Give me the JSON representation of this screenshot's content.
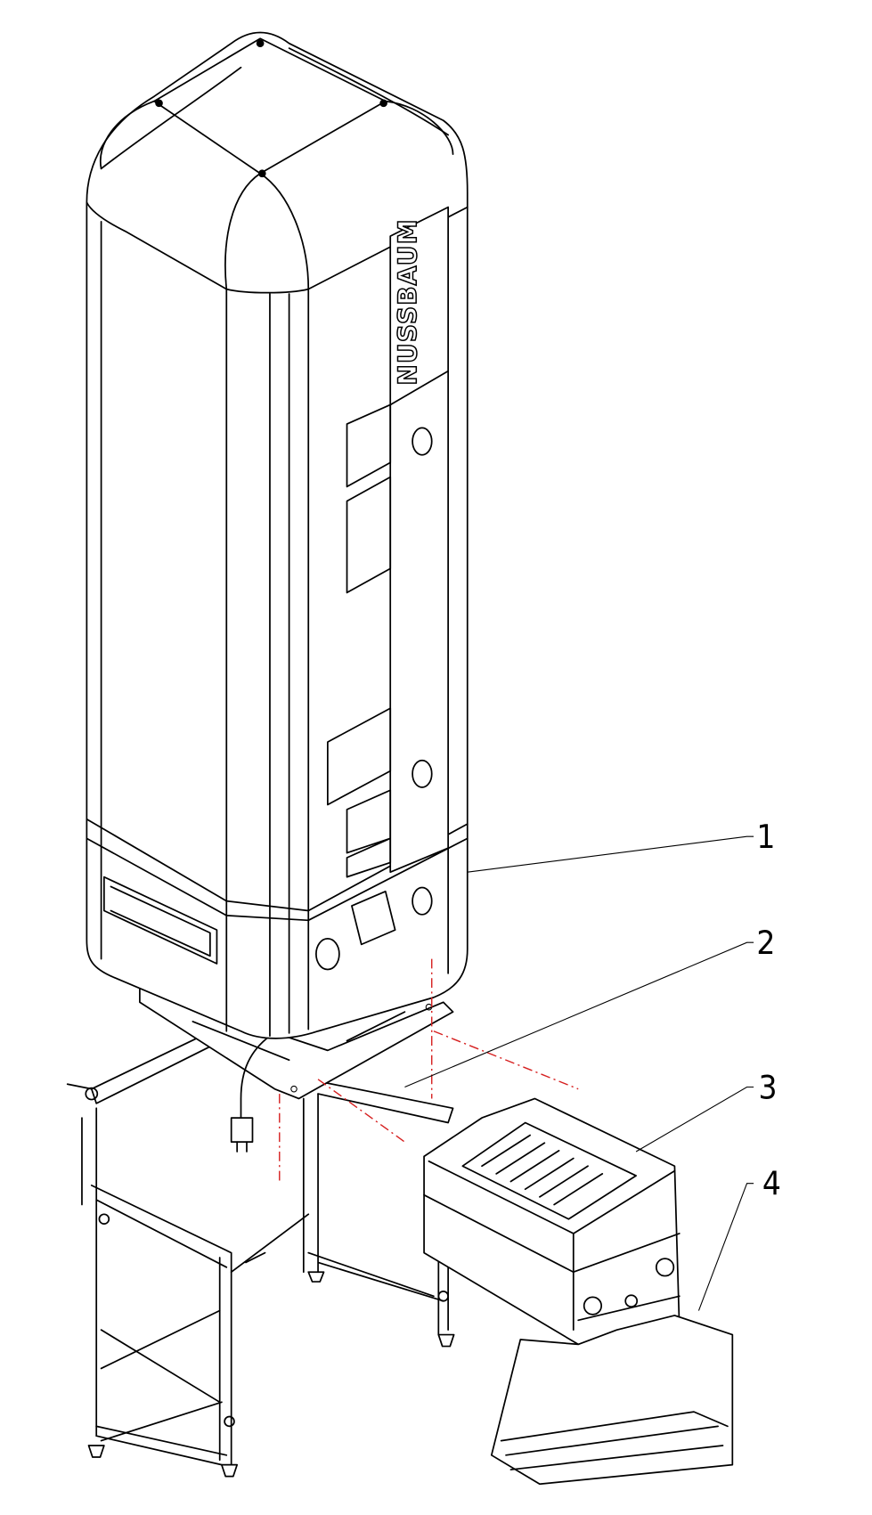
{
  "drawing": {
    "brand": "NUSSBAUM",
    "callouts": [
      {
        "label": "1"
      },
      {
        "label": "2"
      },
      {
        "label": "3"
      },
      {
        "label": "4"
      }
    ]
  }
}
